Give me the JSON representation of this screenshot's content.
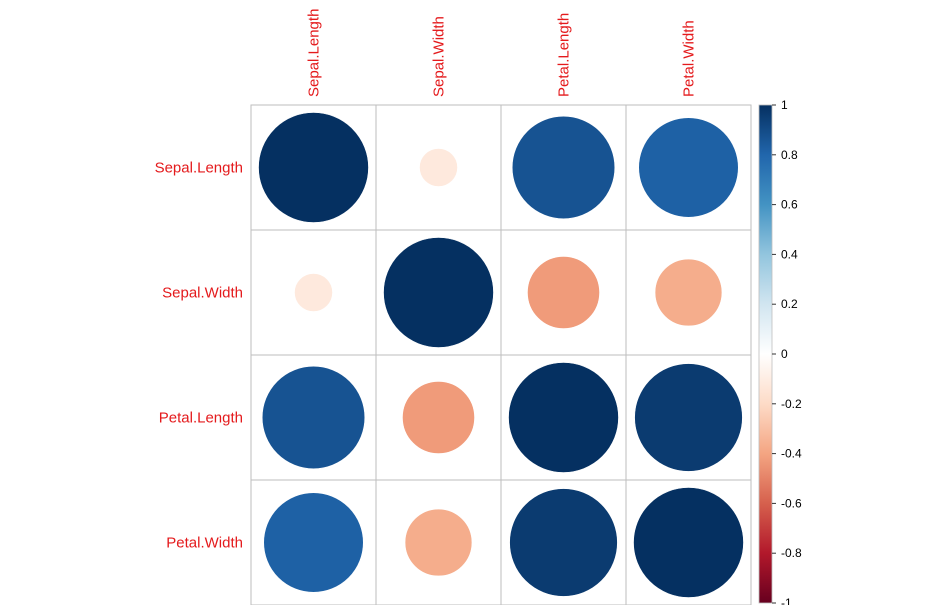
{
  "chart_data": {
    "type": "heatmap",
    "method": "circle",
    "variables": [
      "Sepal.Length",
      "Sepal.Width",
      "Petal.Length",
      "Petal.Width"
    ],
    "matrix": [
      [
        1.0,
        -0.12,
        0.87,
        0.82
      ],
      [
        -0.12,
        1.0,
        -0.43,
        -0.37
      ],
      [
        0.87,
        -0.43,
        1.0,
        0.96
      ],
      [
        0.82,
        -0.37,
        0.96,
        1.0
      ]
    ],
    "colorbar": {
      "range": [
        -1,
        1
      ],
      "ticks": [
        1,
        0.8,
        0.6,
        0.4,
        0.2,
        0,
        -0.2,
        -0.4,
        -0.6,
        -0.8,
        -1
      ],
      "tick_labels": [
        "1",
        "0.8",
        "0.6",
        "0.4",
        "0.2",
        "0",
        "-0.2",
        "-0.4",
        "-0.6",
        "-0.8",
        "-1"
      ]
    },
    "label_color": "#E41A1C",
    "grid_color": "#BEBEBE",
    "palette": [
      "#67001F",
      "#B2182B",
      "#D6604D",
      "#F4A582",
      "#FDDBC7",
      "#FFFFFF",
      "#D1E5F0",
      "#92C5DE",
      "#4393C3",
      "#2166AC",
      "#053061"
    ]
  }
}
